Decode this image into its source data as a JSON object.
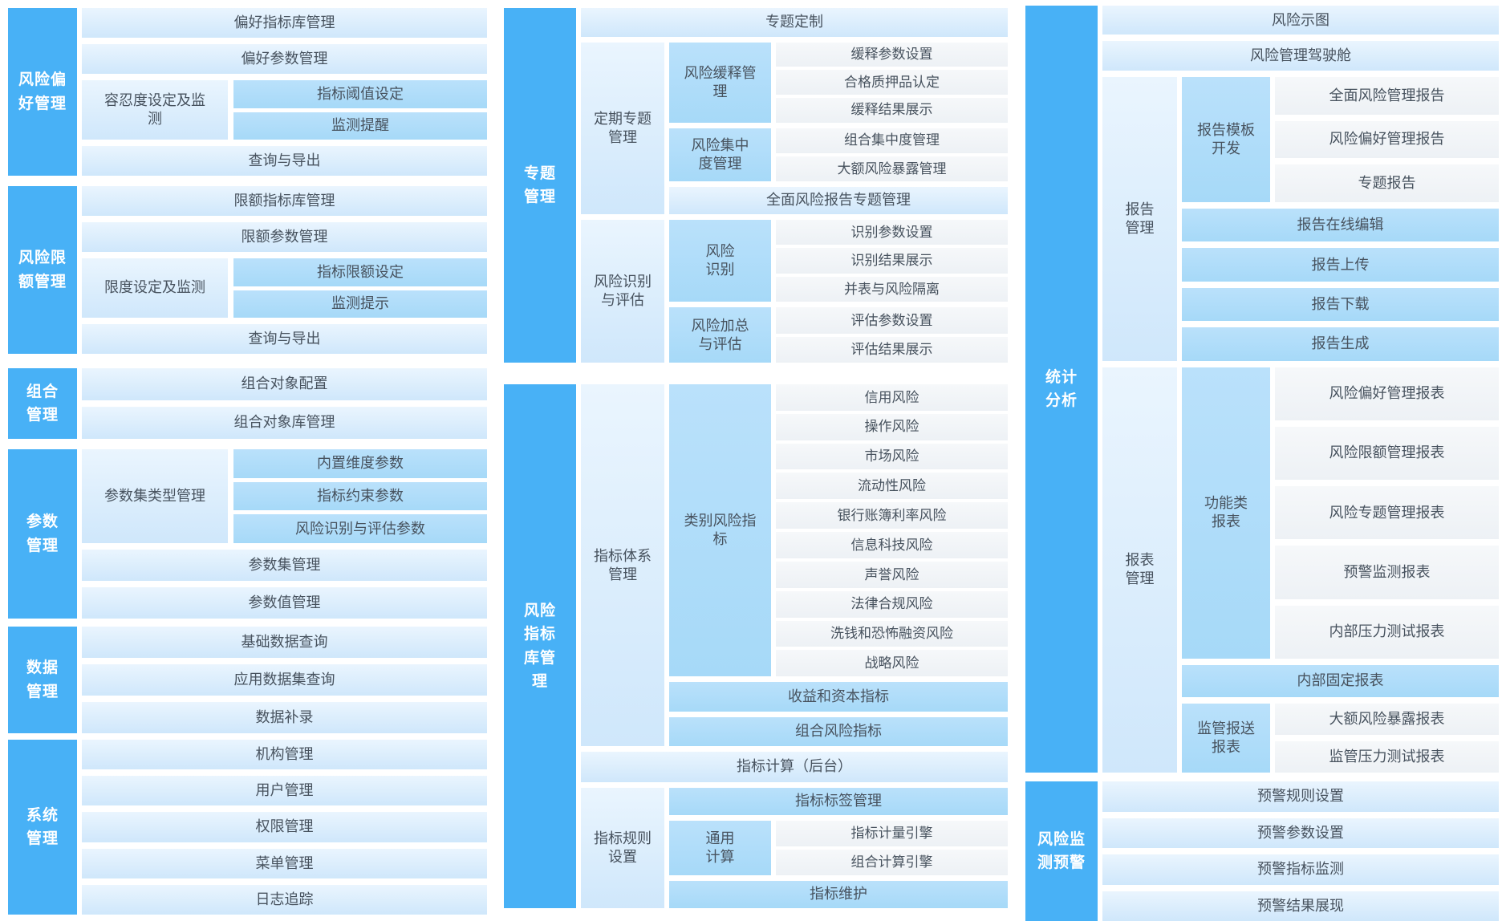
{
  "palette": {
    "accent": "#48b1f6",
    "light_block": "#d9ecfb",
    "mid_block": "#aedcf9",
    "pale_block": "#f2f5f8",
    "text": "#47525e",
    "label_text": "#ffffff"
  },
  "columns": [
    {
      "id": "left",
      "sections": [
        {
          "id": "risk-preference",
          "label": "风险偏\n好管理",
          "items": [
            {
              "label": "偏好指标库管理",
              "v": "light"
            },
            {
              "label": "偏好参数管理",
              "v": "light"
            },
            {
              "label": "容忍度设定及监\n测",
              "v": "light",
              "children": [
                {
                  "label": "指标阈值设定",
                  "v": "mid"
                },
                {
                  "label": "监测提醒",
                  "v": "mid"
                }
              ]
            },
            {
              "label": "查询与导出",
              "v": "light"
            }
          ]
        },
        {
          "id": "risk-limit",
          "label": "风险限\n额管理",
          "items": [
            {
              "label": "限额指标库管理",
              "v": "light"
            },
            {
              "label": "限额参数管理",
              "v": "light"
            },
            {
              "label": "限度设定及监测",
              "v": "light",
              "children": [
                {
                  "label": "指标限额设定",
                  "v": "mid"
                },
                {
                  "label": "监测提示",
                  "v": "mid"
                }
              ]
            },
            {
              "label": "查询与导出",
              "v": "light"
            }
          ]
        },
        {
          "id": "portfolio",
          "label": "组合\n管理",
          "items": [
            {
              "label": "组合对象配置",
              "v": "light"
            },
            {
              "label": "组合对象库管理",
              "v": "light"
            }
          ]
        },
        {
          "id": "parameter",
          "label": "参数\n管理",
          "items": [
            {
              "label": "参数集类型管理",
              "v": "light",
              "children": [
                {
                  "label": "内置维度参数",
                  "v": "mid"
                },
                {
                  "label": "指标约束参数",
                  "v": "mid"
                },
                {
                  "label": "风险识别与评估参数",
                  "v": "mid"
                }
              ]
            },
            {
              "label": "参数集管理",
              "v": "light"
            },
            {
              "label": "参数值管理",
              "v": "light"
            }
          ]
        },
        {
          "id": "data",
          "label": "数据\n管理",
          "items": [
            {
              "label": "基础数据查询",
              "v": "light"
            },
            {
              "label": "应用数据集查询",
              "v": "light"
            },
            {
              "label": "数据补录",
              "v": "light"
            }
          ]
        },
        {
          "id": "system",
          "label": "系统\n管理",
          "items": [
            {
              "label": "机构管理",
              "v": "light"
            },
            {
              "label": "用户管理",
              "v": "light"
            },
            {
              "label": "权限管理",
              "v": "light"
            },
            {
              "label": "菜单管理",
              "v": "light"
            },
            {
              "label": "日志追踪",
              "v": "light"
            }
          ]
        }
      ]
    },
    {
      "id": "mid",
      "sections": [
        {
          "id": "topic",
          "label": "专题\n管理",
          "items": [
            {
              "label": "专题定制",
              "v": "light"
            },
            {
              "label": "定期专题\n管理",
              "v": "light",
              "children": [
                {
                  "label": "风险缓释管\n理",
                  "v": "mid",
                  "children": [
                    {
                      "label": "缓释参数设置",
                      "v": "pale"
                    },
                    {
                      "label": "合格质押品认定",
                      "v": "pale"
                    },
                    {
                      "label": "缓释结果展示",
                      "v": "pale"
                    }
                  ]
                },
                {
                  "label": "风险集中\n度管理",
                  "v": "mid",
                  "children": [
                    {
                      "label": "组合集中度管理",
                      "v": "pale"
                    },
                    {
                      "label": "大额风险暴露管理",
                      "v": "pale"
                    }
                  ]
                },
                {
                  "label": "全面风险报告专题管理",
                  "v": "light"
                }
              ]
            },
            {
              "label": "风险识别\n与评估",
              "v": "light",
              "children": [
                {
                  "label": "风险\n识别",
                  "v": "mid",
                  "children": [
                    {
                      "label": "识别参数设置",
                      "v": "pale"
                    },
                    {
                      "label": "识别结果展示",
                      "v": "pale"
                    },
                    {
                      "label": "并表与风险隔离",
                      "v": "pale"
                    }
                  ]
                },
                {
                  "label": "风险加总\n与评估",
                  "v": "mid",
                  "children": [
                    {
                      "label": "评估参数设置",
                      "v": "pale"
                    },
                    {
                      "label": "评估结果展示",
                      "v": "pale"
                    }
                  ]
                }
              ]
            }
          ]
        },
        {
          "id": "indicator",
          "label": "风险\n指标\n库管\n理",
          "items": [
            {
              "label": "指标体系\n管理",
              "v": "light",
              "children": [
                {
                  "label": "类别风险指\n标",
                  "v": "mid",
                  "children": [
                    {
                      "label": "信用风险",
                      "v": "pale"
                    },
                    {
                      "label": "操作风险",
                      "v": "pale"
                    },
                    {
                      "label": "市场风险",
                      "v": "pale"
                    },
                    {
                      "label": "流动性风险",
                      "v": "pale"
                    },
                    {
                      "label": "银行账簿利率风险",
                      "v": "pale"
                    },
                    {
                      "label": "信息科技风险",
                      "v": "pale"
                    },
                    {
                      "label": "声誉风险",
                      "v": "pale"
                    },
                    {
                      "label": "法律合规风险",
                      "v": "pale"
                    },
                    {
                      "label": "洗钱和恐怖融资风险",
                      "v": "pale"
                    },
                    {
                      "label": "战略风险",
                      "v": "pale"
                    }
                  ]
                },
                {
                  "label": "收益和资本指标",
                  "v": "mid"
                },
                {
                  "label": "组合风险指标",
                  "v": "mid"
                }
              ]
            },
            {
              "label": "指标计算（后台）",
              "v": "light"
            },
            {
              "label": "指标规则\n设置",
              "v": "light",
              "children": [
                {
                  "label": "指标标签管理",
                  "v": "mid"
                },
                {
                  "label": "通用\n计算",
                  "v": "mid",
                  "children": [
                    {
                      "label": "指标计量引擎",
                      "v": "pale"
                    },
                    {
                      "label": "组合计算引擎",
                      "v": "pale"
                    }
                  ]
                },
                {
                  "label": "指标维护",
                  "v": "mid"
                }
              ]
            }
          ]
        }
      ]
    },
    {
      "id": "right",
      "sections": [
        {
          "id": "statistics",
          "label": "统计\n分析",
          "items": [
            {
              "label": "风险示图",
              "v": "light",
              "wt": 0.72
            },
            {
              "label": "风险管理驾驶舱",
              "v": "light",
              "wt": 0.72
            },
            {
              "id": "report-mgmt",
              "label": "报告\n管理",
              "v": "light",
              "children": [
                {
                  "label": "报告模板\n开发",
                  "v": "mid",
                  "wt": 3.4,
                  "children": [
                    {
                      "label": "全面风险管理报告",
                      "v": "pale"
                    },
                    {
                      "label": "风险偏好管理报告",
                      "v": "pale"
                    },
                    {
                      "label": "专题报告",
                      "v": "pale"
                    }
                  ]
                },
                {
                  "label": "报告在线编辑",
                  "v": "mid",
                  "wt": 0.9
                },
                {
                  "label": "报告上传",
                  "v": "mid",
                  "wt": 0.9
                },
                {
                  "label": "报告下载",
                  "v": "mid",
                  "wt": 0.9
                },
                {
                  "label": "报告生成",
                  "v": "mid",
                  "wt": 0.9
                }
              ]
            },
            {
              "id": "sheet-mgmt",
              "label": "报表\n管理",
              "v": "light",
              "wt": 10,
              "children": [
                {
                  "id": "functional-sheets",
                  "label": "功能类\n报表",
                  "v": "mid",
                  "wt": 6,
                  "children": [
                    {
                      "label": "风险偏好管理报表",
                      "v": "pale"
                    },
                    {
                      "label": "风险限额管理报表",
                      "v": "pale"
                    },
                    {
                      "label": "风险专题管理报表",
                      "v": "pale"
                    },
                    {
                      "label": "预警监测报表",
                      "v": "pale"
                    },
                    {
                      "label": "内部压力测试报表",
                      "v": "pale"
                    }
                  ]
                },
                {
                  "label": "内部固定报表",
                  "v": "mid",
                  "wt": 0.66
                },
                {
                  "id": "regulatory-sheets",
                  "label": "监管报送\n报表",
                  "v": "mid",
                  "wt": 1.42,
                  "children": [
                    {
                      "label": "大额风险暴露报表",
                      "v": "pale"
                    },
                    {
                      "label": "监管压力测试报表",
                      "v": "pale"
                    }
                  ]
                }
              ]
            }
          ]
        },
        {
          "id": "monitor-warning",
          "label": "风险监\n测预警",
          "items": [
            {
              "label": "预警规则设置",
              "v": "light"
            },
            {
              "label": "预警参数设置",
              "v": "light"
            },
            {
              "label": "预警指标监测",
              "v": "light"
            },
            {
              "label": "预警结果展现",
              "v": "light"
            }
          ]
        }
      ]
    }
  ]
}
